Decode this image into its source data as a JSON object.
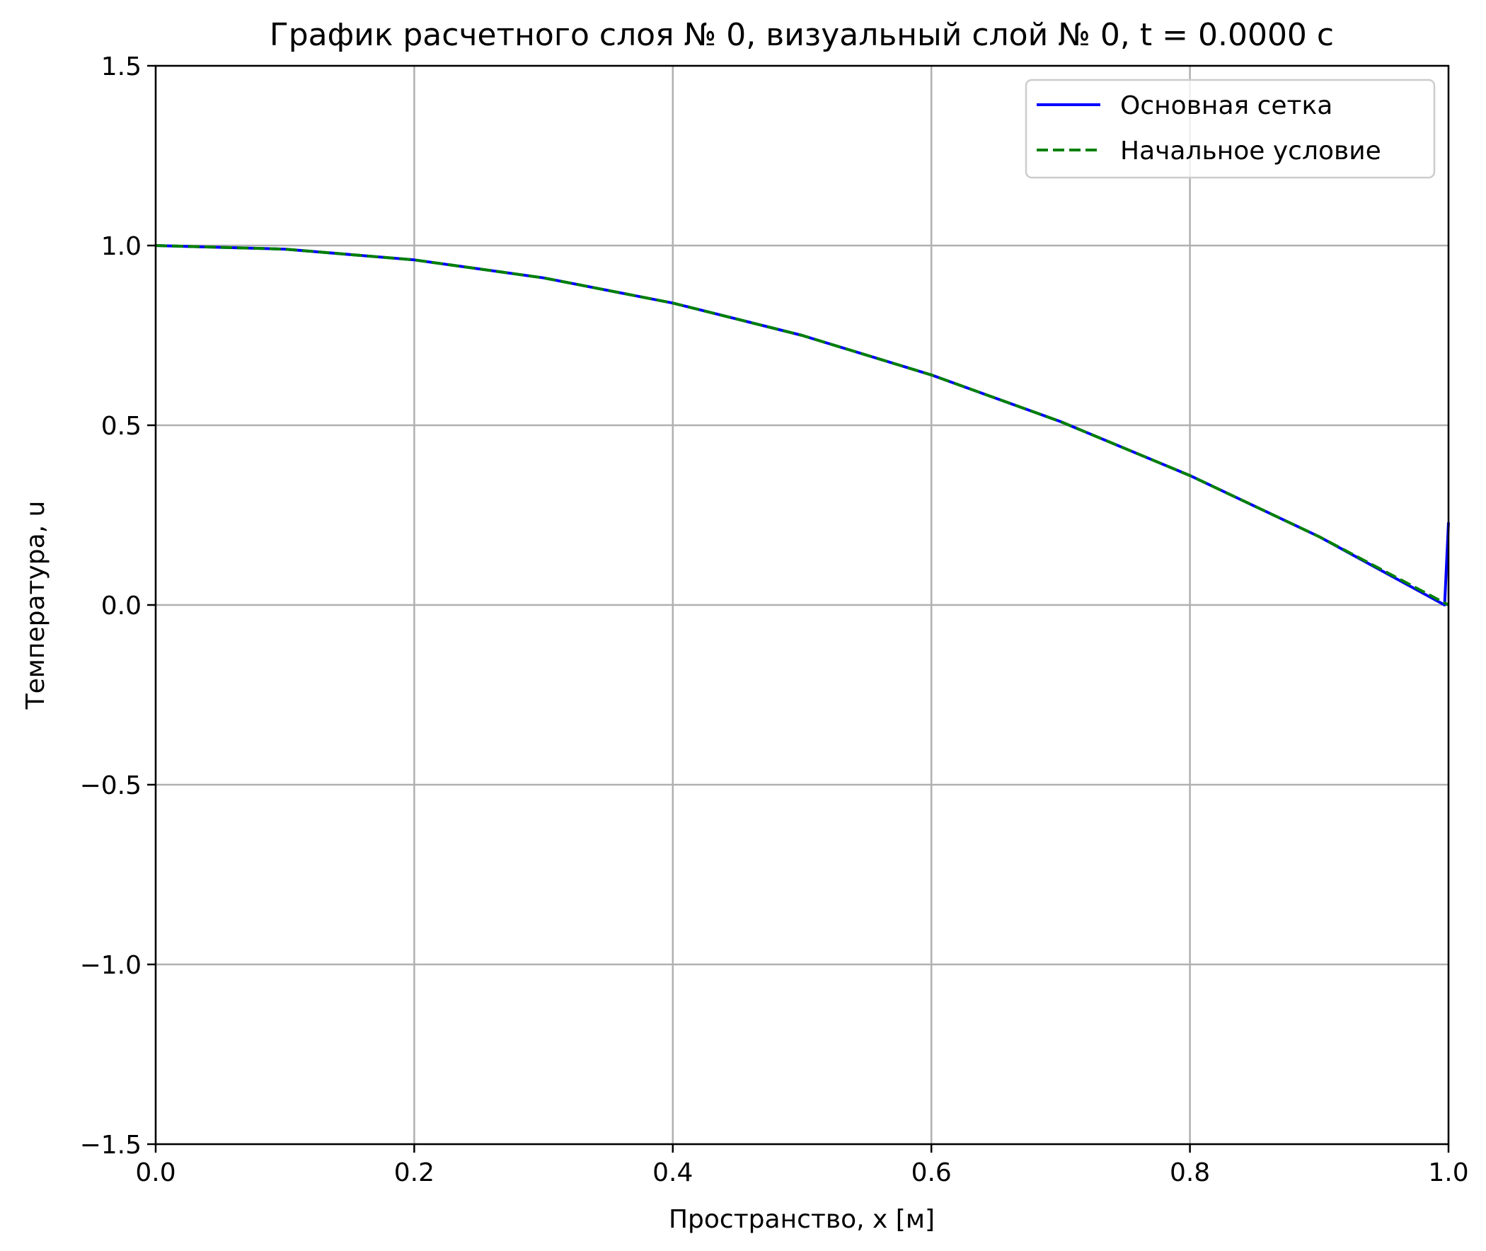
{
  "chart_data": {
    "type": "line",
    "title": "График расчетного слоя № 0, визуальный слой № 0, t = 0.0000 с",
    "xlabel": "Пространство, x [м]",
    "ylabel": "Температура, u",
    "xlim": [
      0.0,
      1.0
    ],
    "ylim": [
      -1.5,
      1.5
    ],
    "xticks": [
      "0.0",
      "0.2",
      "0.4",
      "0.6",
      "0.8",
      "1.0"
    ],
    "yticks": [
      "−1.5",
      "−1.0",
      "−0.5",
      "0.0",
      "0.5",
      "1.0",
      "1.5"
    ],
    "grid": true,
    "legend_position": "top-right",
    "series": [
      {
        "name": "Основная сетка",
        "color": "#0000ff",
        "style": "solid",
        "x": [
          0.0,
          0.1,
          0.2,
          0.3,
          0.4,
          0.5,
          0.6,
          0.7,
          0.8,
          0.9,
          0.997,
          1.0
        ],
        "y": [
          1.0,
          0.99,
          0.96,
          0.91,
          0.84,
          0.75,
          0.64,
          0.51,
          0.36,
          0.19,
          0.0,
          0.23
        ]
      },
      {
        "name": "Начальное условие",
        "color": "#008000",
        "style": "dashed",
        "x": [
          0.0,
          0.1,
          0.2,
          0.3,
          0.4,
          0.5,
          0.6,
          0.7,
          0.8,
          0.9,
          1.0
        ],
        "y": [
          1.0,
          0.99,
          0.96,
          0.91,
          0.84,
          0.75,
          0.64,
          0.51,
          0.36,
          0.19,
          0.0
        ]
      }
    ]
  }
}
